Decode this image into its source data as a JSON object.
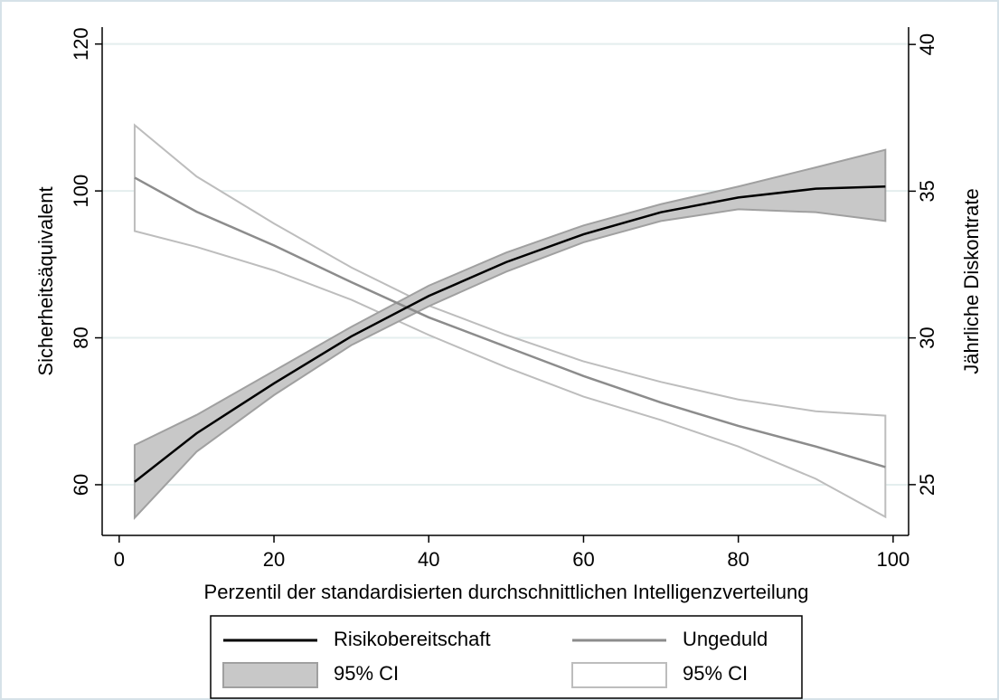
{
  "chart_data": {
    "type": "line",
    "xlabel": "Perzentil der standardisierten durchschnittlichen Intelligenzverteilung",
    "ylabel": "Sicherheitsäquivalent",
    "y2label": "Jährliche Diskontrate",
    "x": [
      2,
      10,
      20,
      30,
      40,
      50,
      60,
      70,
      80,
      90,
      99
    ],
    "xlim": [
      -2.2,
      102
    ],
    "xticks": [
      0,
      20,
      40,
      60,
      80,
      100
    ],
    "ylim": [
      53.1,
      122.3
    ],
    "yticks": [
      60,
      80,
      100,
      120
    ],
    "y2lim": [
      23.27,
      40.59
    ],
    "y2ticks": [
      25,
      30,
      35,
      40
    ],
    "grid": true,
    "series": [
      {
        "name": "Risikobereitschaft",
        "type": "line",
        "axis": "y",
        "color": "#000000",
        "values": [
          60.4,
          67,
          73.8,
          80.2,
          85.7,
          90.3,
          94.1,
          97.1,
          99.1,
          100.3,
          100.6
        ]
      },
      {
        "name": "Ungeduld",
        "type": "line",
        "axis": "y2",
        "color": "#8c8c8c",
        "values": [
          35.46,
          34.3,
          33.15,
          31.9,
          30.7,
          29.7,
          28.7,
          27.8,
          27.0,
          26.3,
          25.6
        ]
      },
      {
        "name": "95% CI",
        "type": "range",
        "axis": "y",
        "color": "#c8c8c8",
        "edge": "#a0a0a0",
        "lower": [
          55.5,
          64.5,
          72.2,
          79.0,
          84.3,
          89.0,
          93.0,
          95.9,
          97.5,
          97.1,
          95.9
        ],
        "upper": [
          65.4,
          69.5,
          75.5,
          81.5,
          87.1,
          91.6,
          95.3,
          98.2,
          100.6,
          103.2,
          105.6
        ]
      },
      {
        "name": "95% CI",
        "type": "range",
        "axis": "y2",
        "color": "#ffffff",
        "edge": "#bdbdbd",
        "lower": [
          33.64,
          33.1,
          32.3,
          31.3,
          30.1,
          29.0,
          28.0,
          27.2,
          26.3,
          25.2,
          23.9
        ],
        "upper": [
          37.25,
          35.5,
          33.9,
          32.4,
          31.1,
          30.1,
          29.2,
          28.5,
          27.9,
          27.5,
          27.35
        ]
      }
    ]
  }
}
